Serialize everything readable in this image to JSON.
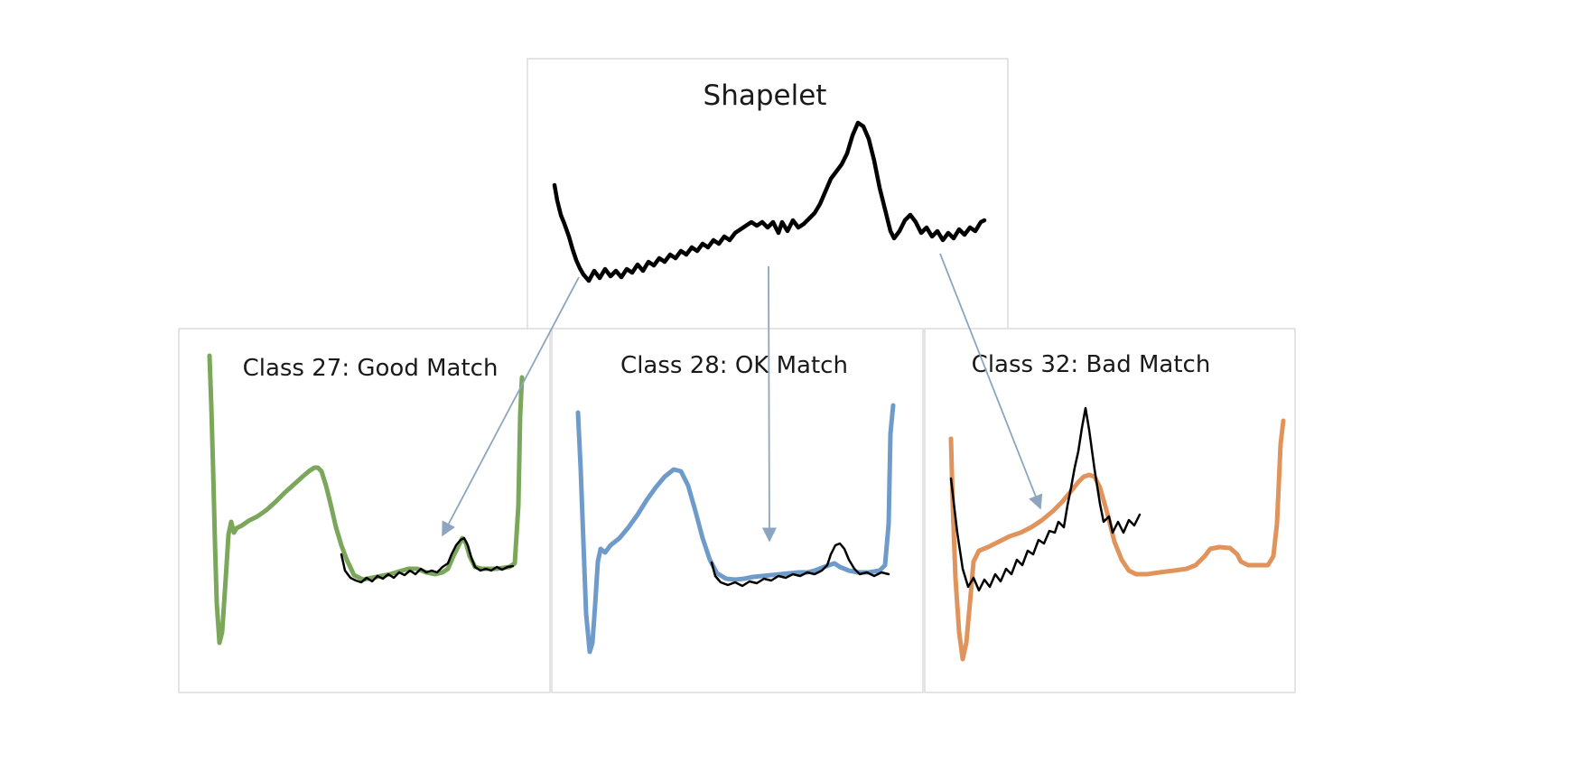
{
  "shapelet": {
    "title": "Shapelet"
  },
  "panels": [
    {
      "id": "class-27",
      "title": "Class 27: Good Match",
      "color": "#7aa75a"
    },
    {
      "id": "class-28",
      "title": "Class 28: OK Match",
      "color": "#6f9bcb"
    },
    {
      "id": "class-32",
      "title": "Class 32: Bad Match",
      "color": "#e0935a"
    }
  ],
  "colors": {
    "shapelet": "#000000",
    "arrow": "#8ca6bf",
    "frame": "#dcdcdc"
  }
}
